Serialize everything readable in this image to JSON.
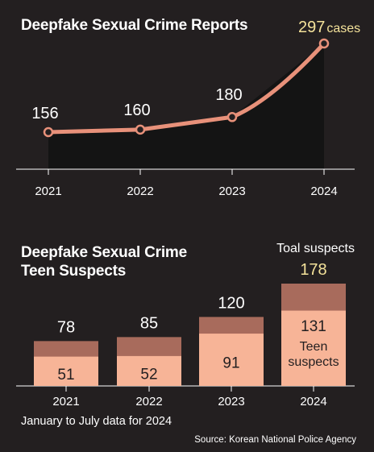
{
  "chart_data": [
    {
      "type": "line",
      "title": "Deepfake Sexual Crime Reports",
      "categories": [
        "2021",
        "2022",
        "2023",
        "2024"
      ],
      "values": [
        156,
        160,
        180,
        297
      ],
      "last_value_unit": "cases",
      "colors": {
        "line": "#e8917a",
        "area": "#141414",
        "highlight": "#f4e29a"
      }
    },
    {
      "type": "bar",
      "title": "Deepfake Sexual Crime\nTeen Suspects",
      "title_lines": [
        "Deepfake Sexual Crime",
        "Teen Suspects"
      ],
      "categories": [
        "2021",
        "2022",
        "2023",
        "2024"
      ],
      "series": [
        {
          "name": "Teen suspects",
          "values": [
            51,
            52,
            91,
            131
          ]
        },
        {
          "name": "Toal suspects",
          "values": [
            78,
            85,
            120,
            178
          ]
        }
      ],
      "total_label": "Toal suspects",
      "teen_label_lines": [
        "Teen",
        "suspects"
      ],
      "colors": {
        "teen": "#f7b497",
        "total": "#a86b5c",
        "highlight": "#f4e29a"
      }
    }
  ],
  "footnote": "January to July data for 2024",
  "source": "Source: Korean National Police Agency"
}
